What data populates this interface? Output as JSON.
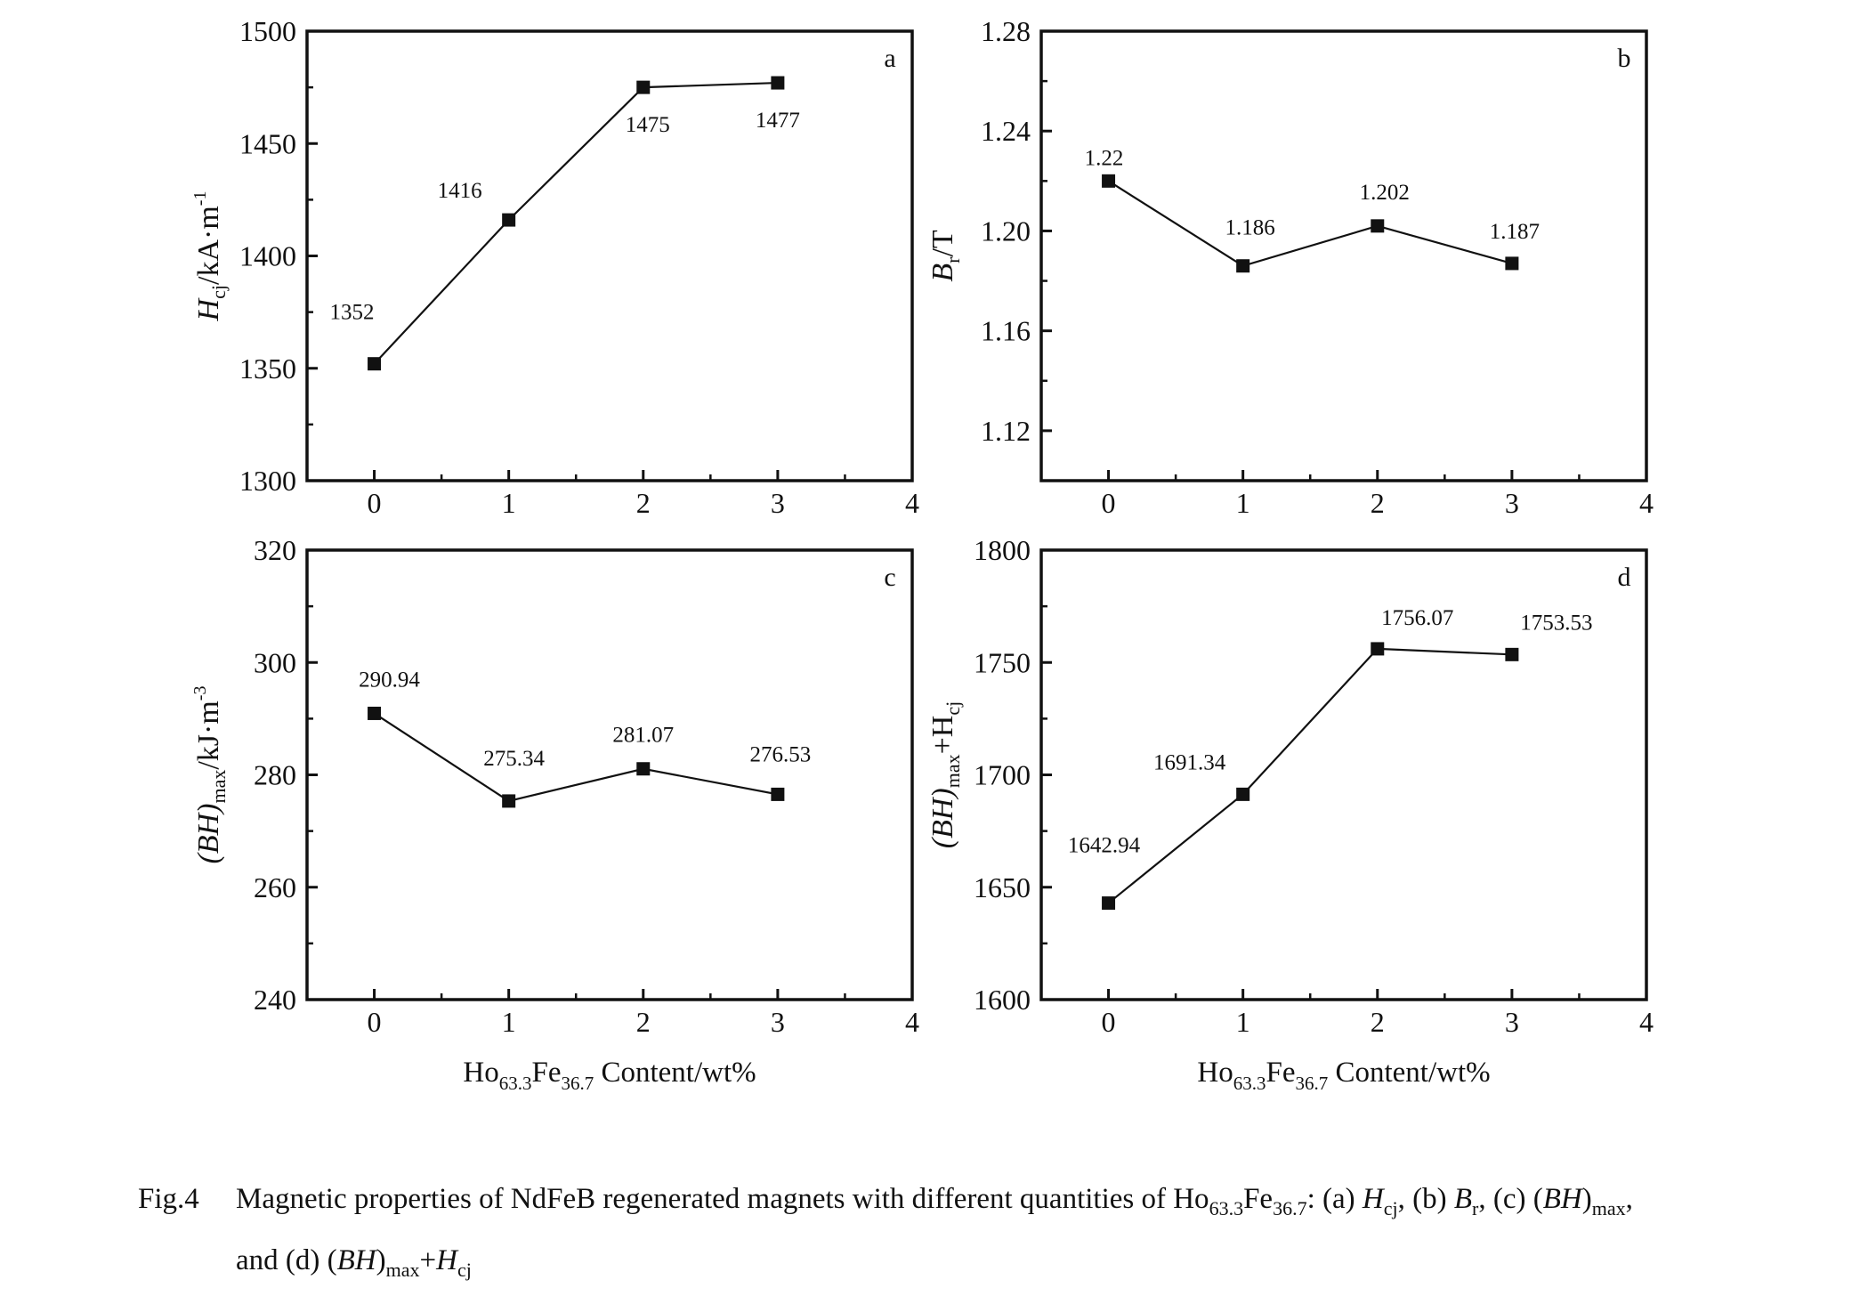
{
  "chart_data": [
    {
      "id": "a",
      "type": "line",
      "panel_letter": "a",
      "x": [
        0,
        1,
        2,
        3
      ],
      "values": [
        1352,
        1416,
        1475,
        1477
      ],
      "data_labels": [
        "1352",
        "1416",
        "1475",
        "1477"
      ],
      "xlim": [
        -0.5,
        4
      ],
      "ylim": [
        1300,
        1500
      ],
      "x_ticks": [
        "0",
        "1",
        "2",
        "3",
        "4"
      ],
      "y_ticks": [
        "1300",
        "1350",
        "1400",
        "1450",
        "1500"
      ],
      "ylabel": {
        "main": "H",
        "sub": "cj",
        "rest": "/kA·m",
        "sup": "-1"
      },
      "xlabel": null
    },
    {
      "id": "b",
      "type": "line",
      "panel_letter": "b",
      "x": [
        0,
        1,
        2,
        3
      ],
      "values": [
        1.22,
        1.186,
        1.202,
        1.187
      ],
      "data_labels": [
        "1.22",
        "1.186",
        "1.202",
        "1.187"
      ],
      "xlim": [
        -0.5,
        4
      ],
      "ylim": [
        1.1,
        1.28
      ],
      "x_ticks": [
        "0",
        "1",
        "2",
        "3",
        "4"
      ],
      "y_ticks": [
        "1.12",
        "1.16",
        "1.20",
        "1.24",
        "1.28"
      ],
      "ylabel": {
        "main": "B",
        "sub": "r",
        "rest": "/T",
        "sup": ""
      },
      "xlabel": null
    },
    {
      "id": "c",
      "type": "line",
      "panel_letter": "c",
      "x": [
        0,
        1,
        2,
        3
      ],
      "values": [
        290.94,
        275.34,
        281.07,
        276.53
      ],
      "data_labels": [
        "290.94",
        "275.34",
        "281.07",
        "276.53"
      ],
      "xlim": [
        -0.5,
        4
      ],
      "ylim": [
        240,
        320
      ],
      "x_ticks": [
        "0",
        "1",
        "2",
        "3",
        "4"
      ],
      "y_ticks": [
        "240",
        "260",
        "280",
        "300",
        "320"
      ],
      "ylabel": {
        "main": "(BH)",
        "sub": "max",
        "rest": "/kJ·m",
        "sup": "-3"
      },
      "xlabel": {
        "main": "Ho",
        "sub1": "63.3",
        "mid": "Fe",
        "sub2": "36.7",
        "rest": " Content/wt%"
      }
    },
    {
      "id": "d",
      "type": "line",
      "panel_letter": "d",
      "x": [
        0,
        1,
        2,
        3
      ],
      "values": [
        1642.94,
        1691.34,
        1756.07,
        1753.53
      ],
      "data_labels": [
        "1642.94",
        "1691.34",
        "1756.07",
        "1753.53"
      ],
      "xlim": [
        -0.5,
        4
      ],
      "ylim": [
        1600,
        1800
      ],
      "x_ticks": [
        "0",
        "1",
        "2",
        "3",
        "4"
      ],
      "y_ticks": [
        "1600",
        "1650",
        "1700",
        "1750",
        "1800"
      ],
      "ylabel": {
        "main": "(BH)",
        "sub": "max",
        "rest": "+H",
        "sub2": "cj"
      },
      "xlabel": {
        "main": "Ho",
        "sub1": "63.3",
        "mid": "Fe",
        "sub2": "36.7",
        "rest": " Content/wt%"
      }
    }
  ],
  "caption": {
    "label": "Fig.4",
    "line1_text": "Magnetic properties of NdFeB regenerated magnets with different quantities of Ho",
    "sub_a": "63.3",
    "fe": "Fe",
    "sub_b": "36.7",
    "colon": ": (a) ",
    "hcj": "H",
    "hcj_sub": "cj",
    "b_part": ", (b) ",
    "br": "B",
    "br_sub": "r",
    "c_part": ", (c) (",
    "bh": "BH",
    "c_close": ")",
    "max_sub": "max",
    "comma": ",",
    "line2_text": "and (d) (",
    "bh2": "BH",
    "close2": ")",
    "max_sub2": "max",
    "plus": "+",
    "h2": "H",
    "cj_sub2": "cj"
  }
}
